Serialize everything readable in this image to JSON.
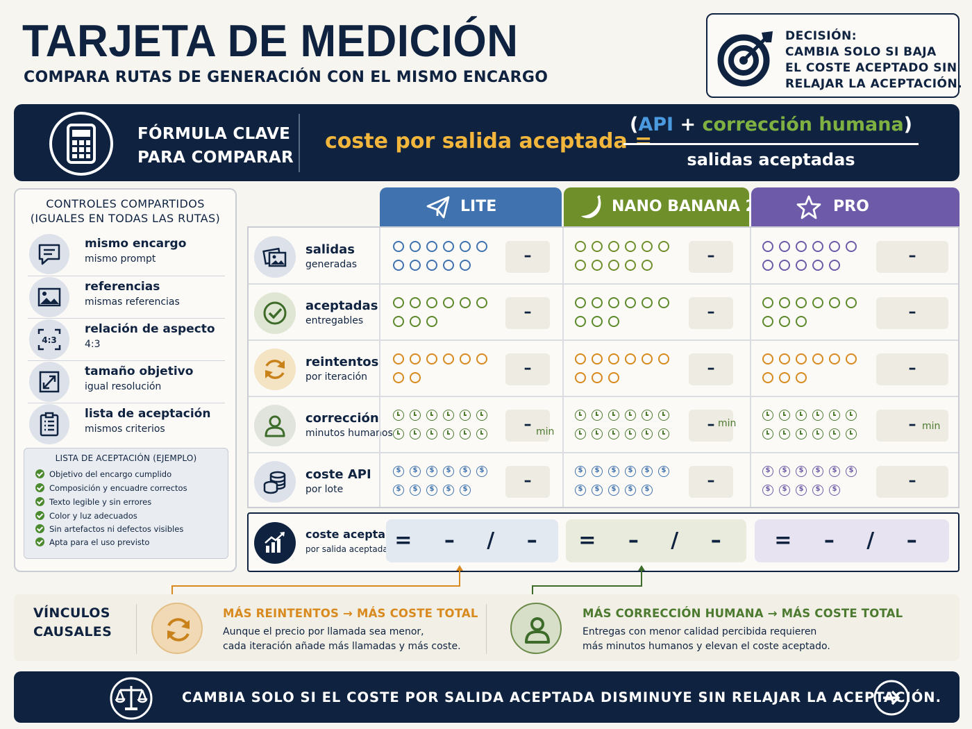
{
  "header": {
    "title": "TARJETA DE MEDICIÓN",
    "subtitle": "COMPARA RUTAS DE GENERACIÓN CON EL MISMO ENCARGO",
    "decision_lines": [
      "DECISIÓN:",
      "CAMBIA SOLO SI BAJA",
      "EL COSTE ACEPTADO SIN",
      "RELAJAR LA ACEPTACIÓN."
    ]
  },
  "formula": {
    "label_line1": "FÓRMULA CLAVE",
    "label_line2": "PARA COMPARAR",
    "lhs": "coste por salida aceptada =",
    "open_paren": "(",
    "api": "API",
    "plus": " + ",
    "correction": "corrección humana",
    "close_paren": ")",
    "denominator": "salidas aceptadas"
  },
  "controls": {
    "title_line1": "CONTROLES COMPARTIDOS",
    "title_line2": "(IGUALES EN TODAS LAS RUTAS)",
    "items": [
      {
        "title": "mismo encargo",
        "subtitle": "mismo prompt",
        "icon": "chat-icon"
      },
      {
        "title": "referencias",
        "subtitle": "mismas referencias",
        "icon": "image-icon"
      },
      {
        "title": "relación de aspecto",
        "subtitle": "4:3",
        "icon": "aspect-ratio-icon",
        "icon_text": "4:3"
      },
      {
        "title": "tamaño objetivo",
        "subtitle": "igual resolución",
        "icon": "resize-icon"
      },
      {
        "title": "lista de aceptación",
        "subtitle": "mismos criterios",
        "icon": "clipboard-icon"
      }
    ],
    "acceptance_title": "LISTA DE ACEPTACIÓN (EJEMPLO)",
    "acceptance_items": [
      "Objetivo del encargo cumplido",
      "Composición y encuadre correctos",
      "Texto legible y sin errores",
      "Color y luz adecuados",
      "Sin artefactos ni defectos visibles",
      "Apta para el uso previsto"
    ]
  },
  "routes": [
    {
      "name": "LITE",
      "icon": "paper-plane-icon",
      "color": "#3f72ae",
      "light": "#e3e9f1"
    },
    {
      "name": "NANO BANANA 2",
      "icon": "banana-icon",
      "color": "#6e8f2a",
      "light": "#e9ecdc"
    },
    {
      "name": "PRO",
      "icon": "star-icon",
      "color": "#6d5aa8",
      "light": "#e8e3f0"
    }
  ],
  "metrics": [
    {
      "title": "salidas",
      "subtitle": "generadas",
      "icon": "images-icon",
      "symbol": "circle",
      "color": "#3f72ae",
      "symbols": [
        6,
        5
      ],
      "value": "–",
      "unit": ""
    },
    {
      "title": "aceptadas",
      "subtitle": "entregables",
      "icon": "check-circle-icon",
      "symbol": "circle",
      "color": "#5c8a2a",
      "symbols": [
        6,
        3
      ],
      "value": "–",
      "unit": ""
    },
    {
      "title": "reintentos",
      "subtitle": "por iteración",
      "icon": "refresh-icon",
      "symbol": "circle",
      "color": "#d88a1e",
      "symbols": [
        6,
        2
      ],
      "value": "–",
      "unit": ""
    },
    {
      "title": "corrección",
      "subtitle": "minutos humanos",
      "icon": "person-icon",
      "symbol": "clock",
      "color": "#4c7a2f",
      "symbols": [
        6,
        6
      ],
      "value": "–",
      "unit": "min"
    },
    {
      "title": "coste API",
      "subtitle": "por lote",
      "icon": "coins-icon",
      "symbol": "dollar",
      "color": "#3f72ae",
      "symbols": [
        6,
        5
      ],
      "value": "–",
      "unit": ""
    }
  ],
  "route_symbol_counts": {
    "LITE": [
      [
        6,
        5
      ],
      [
        6,
        3
      ],
      [
        6,
        2
      ],
      [
        6,
        6
      ],
      [
        6,
        5
      ]
    ],
    "NANO BANANA 2": [
      [
        6,
        5
      ],
      [
        6,
        3
      ],
      [
        6,
        3
      ],
      [
        6,
        6
      ],
      [
        6,
        5
      ]
    ],
    "PRO": [
      [
        6,
        5
      ],
      [
        6,
        3
      ],
      [
        6,
        3
      ],
      [
        6,
        6
      ],
      [
        6,
        5
      ]
    ]
  },
  "result": {
    "title": "coste aceptado",
    "subtitle": "por salida aceptada",
    "values": [
      "= – / –",
      "= – / –",
      "= – / –"
    ]
  },
  "causal": {
    "title_line1": "VÍNCULOS",
    "title_line2": "CAUSALES",
    "links": [
      {
        "head": "MÁS REINTENTOS → MÁS COSTE TOTAL",
        "body_line1": "Aunque el precio por llamada sea menor,",
        "body_line2": "cada iteración añade más llamadas y más coste.",
        "color": "#d88a1e"
      },
      {
        "head": "MÁS CORRECCIÓN HUMANA → MÁS COSTE TOTAL",
        "body_line1": "Entregas con menor calidad percibida requieren",
        "body_line2": "más minutos humanos y elevan el coste aceptado.",
        "color": "#4c7a2f"
      }
    ]
  },
  "footer": {
    "text": "CAMBIA SOLO SI EL COSTE POR SALIDA ACEPTADA DISMINUYE SIN RELAJAR LA ACEPTACIÓN."
  }
}
